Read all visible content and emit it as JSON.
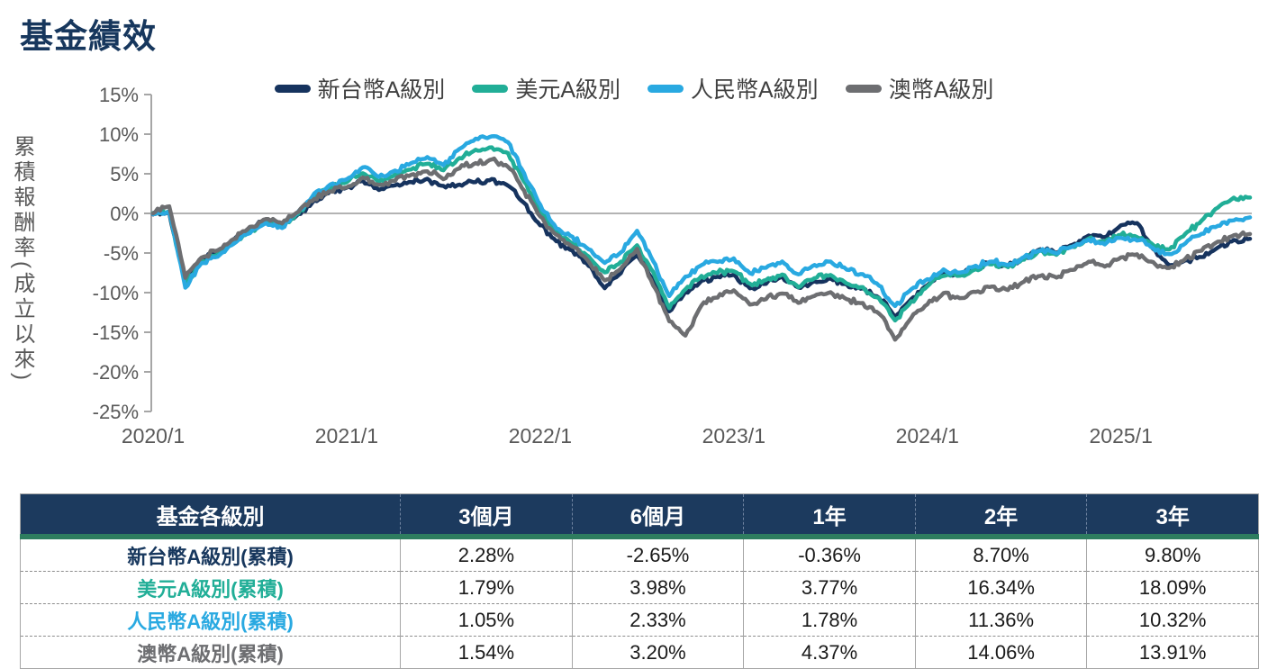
{
  "page": {
    "title": "基金績效"
  },
  "chart_data": {
    "type": "line",
    "title": "基金績效",
    "xlabel": "",
    "ylabel": "累積報酬率(成立以來)",
    "ylim": [
      -25,
      15
    ],
    "ytick_step": 5,
    "ytick_suffix": "%",
    "grid": "zero-line-only",
    "legend_position": "top",
    "x_unit": "month-index from 2020/1",
    "xtick_labels": [
      "2020/1",
      "2021/1",
      "2022/1",
      "2023/1",
      "2024/1",
      "2025/1"
    ],
    "xtick_positions": [
      0,
      12,
      24,
      36,
      48,
      60
    ],
    "axis_color": "#a6a6a6",
    "zero_line_color": "#b3b3b3",
    "tick_label_color": "#595959",
    "series": [
      {
        "name": "新台幣A級別",
        "color": "#16335e",
        "values": [
          0,
          0.1,
          -8.3,
          -5.8,
          -5.0,
          -3.4,
          -2.0,
          -0.8,
          -1.4,
          -0.2,
          1.6,
          2.7,
          3.2,
          4.2,
          3.0,
          3.6,
          4.0,
          4.3,
          3.4,
          3.6,
          4.0,
          4.2,
          3.6,
          1.2,
          -1.5,
          -3.5,
          -4.8,
          -6.5,
          -9.5,
          -7.5,
          -5.2,
          -8.5,
          -12.5,
          -10.0,
          -8.6,
          -8.0,
          -7.8,
          -9.4,
          -8.8,
          -8.0,
          -9.4,
          -8.6,
          -8.2,
          -9.0,
          -9.6,
          -10.6,
          -13.0,
          -10.8,
          -9.0,
          -7.5,
          -7.7,
          -6.8,
          -6.2,
          -6.6,
          -5.6,
          -4.5,
          -4.9,
          -3.9,
          -2.8,
          -3.0,
          -1.6,
          -1.2,
          -4.6,
          -6.6,
          -6.0,
          -5.4,
          -4.4,
          -3.4,
          -3.2
        ]
      },
      {
        "name": "美元A級別",
        "color": "#21ae97",
        "values": [
          0,
          0.2,
          -8.9,
          -6.0,
          -5.2,
          -3.6,
          -2.2,
          -1.0,
          -1.6,
          0.0,
          2.0,
          3.2,
          3.9,
          5.2,
          4.0,
          4.8,
          5.6,
          6.3,
          5.4,
          7.0,
          8.0,
          8.4,
          7.6,
          4.0,
          0.3,
          -2.5,
          -3.8,
          -5.5,
          -7.5,
          -6.2,
          -4.0,
          -7.5,
          -12.0,
          -9.5,
          -8.0,
          -7.4,
          -7.2,
          -9.0,
          -8.4,
          -7.8,
          -9.2,
          -8.2,
          -7.8,
          -8.8,
          -9.4,
          -10.8,
          -13.5,
          -11.2,
          -9.2,
          -7.8,
          -7.9,
          -7.0,
          -6.3,
          -6.7,
          -5.7,
          -4.7,
          -5.1,
          -4.1,
          -3.2,
          -3.6,
          -2.6,
          -2.9,
          -3.9,
          -4.6,
          -2.6,
          -1.0,
          0.8,
          1.9,
          2.0
        ]
      },
      {
        "name": "人民幣A級別",
        "color": "#29a9e1",
        "values": [
          0,
          0.2,
          -9.3,
          -6.2,
          -5.4,
          -3.8,
          -2.4,
          -1.2,
          -1.8,
          0.2,
          2.4,
          3.6,
          4.3,
          5.8,
          4.6,
          5.4,
          6.3,
          7.0,
          6.2,
          8.2,
          9.3,
          9.7,
          9.0,
          5.0,
          1.0,
          -1.8,
          -3.0,
          -4.5,
          -6.3,
          -5.0,
          -2.2,
          -6.0,
          -10.5,
          -8.0,
          -6.5,
          -6.0,
          -5.8,
          -7.5,
          -6.8,
          -6.2,
          -7.8,
          -6.5,
          -6.0,
          -7.0,
          -7.8,
          -9.0,
          -11.8,
          -9.5,
          -8.3,
          -7.2,
          -7.5,
          -6.6,
          -6.0,
          -6.5,
          -5.5,
          -4.6,
          -5.0,
          -4.2,
          -3.4,
          -3.8,
          -3.0,
          -3.3,
          -4.4,
          -5.2,
          -3.8,
          -2.6,
          -1.6,
          -0.8,
          -0.5
        ]
      },
      {
        "name": "澳幣A級別",
        "color": "#6d6e71",
        "values": [
          0,
          1.0,
          -8.0,
          -5.5,
          -4.6,
          -3.2,
          -1.8,
          -0.6,
          -1.2,
          0.2,
          1.8,
          2.9,
          3.3,
          4.5,
          3.5,
          4.2,
          4.8,
          5.4,
          4.4,
          5.8,
          6.3,
          6.8,
          6.0,
          2.8,
          -0.5,
          -2.8,
          -4.2,
          -6.0,
          -8.5,
          -7.0,
          -4.6,
          -9.0,
          -13.5,
          -15.5,
          -11.5,
          -10.5,
          -9.8,
          -11.4,
          -10.8,
          -10.0,
          -11.2,
          -10.4,
          -10.0,
          -10.8,
          -11.4,
          -12.6,
          -15.8,
          -13.2,
          -11.4,
          -10.2,
          -10.6,
          -9.8,
          -9.2,
          -9.6,
          -8.6,
          -7.8,
          -8.0,
          -7.0,
          -6.2,
          -6.6,
          -5.6,
          -5.2,
          -6.2,
          -7.0,
          -5.8,
          -4.6,
          -3.6,
          -2.8,
          -2.6
        ]
      }
    ]
  },
  "table": {
    "columns": [
      "基金各級別",
      "3個月",
      "6個月",
      "1年",
      "2年",
      "3年"
    ],
    "rows": [
      {
        "label": "新台幣A級別(累積)",
        "color": "#17375d",
        "values": [
          "2.28%",
          "-2.65%",
          "-0.36%",
          "8.70%",
          "9.80%"
        ]
      },
      {
        "label": "美元A級別(累積)",
        "color": "#21ae97",
        "values": [
          "1.79%",
          "3.98%",
          "3.77%",
          "16.34%",
          "18.09%"
        ]
      },
      {
        "label": "人民幣A級別(累積)",
        "color": "#29a9e1",
        "values": [
          "1.05%",
          "2.33%",
          "1.78%",
          "11.36%",
          "10.32%"
        ]
      },
      {
        "label": "澳幣A級別(累積)",
        "color": "#6d6e71",
        "values": [
          "1.54%",
          "3.20%",
          "4.37%",
          "14.06%",
          "13.91%"
        ]
      }
    ]
  }
}
